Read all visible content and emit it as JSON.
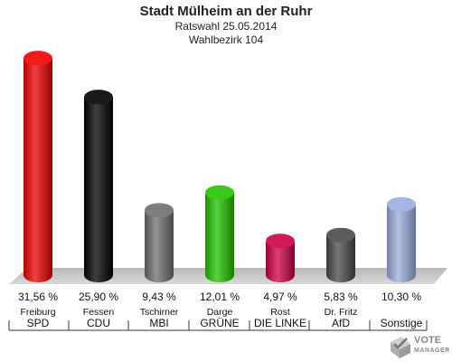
{
  "header": {
    "title": "Stadt Mülheim an der Ruhr",
    "subtitle1": "Ratswahl 25.05.2014",
    "subtitle2": "Wahlbezirk 104"
  },
  "chart_data": {
    "type": "bar",
    "title": "Stadt Mülheim an der Ruhr",
    "categories": [
      "SPD",
      "CDU",
      "MBI",
      "GRÜNE",
      "DIE LINKE",
      "AfD",
      "Sonstige"
    ],
    "candidates": [
      "Freiburg",
      "Fessen",
      "Tschirner",
      "Darge",
      "Rost",
      "Dr. Fritz",
      ""
    ],
    "values": [
      31.56,
      25.9,
      9.43,
      12.01,
      4.97,
      5.83,
      10.3
    ],
    "value_labels": [
      "31,56 %",
      "25,90 %",
      "9,43 %",
      "12,01 %",
      "4,97 %",
      "5,83 %",
      "10,30 %"
    ],
    "colors": [
      "#ee0000",
      "#000000",
      "#6e6e6e",
      "#22c400",
      "#cc0044",
      "#4a4a4a",
      "#9aaee0"
    ],
    "xlabel": "",
    "ylabel": "",
    "grid": false,
    "legend": "none"
  },
  "logo": {
    "line1": "VOTE",
    "line2": "MANAGER"
  }
}
